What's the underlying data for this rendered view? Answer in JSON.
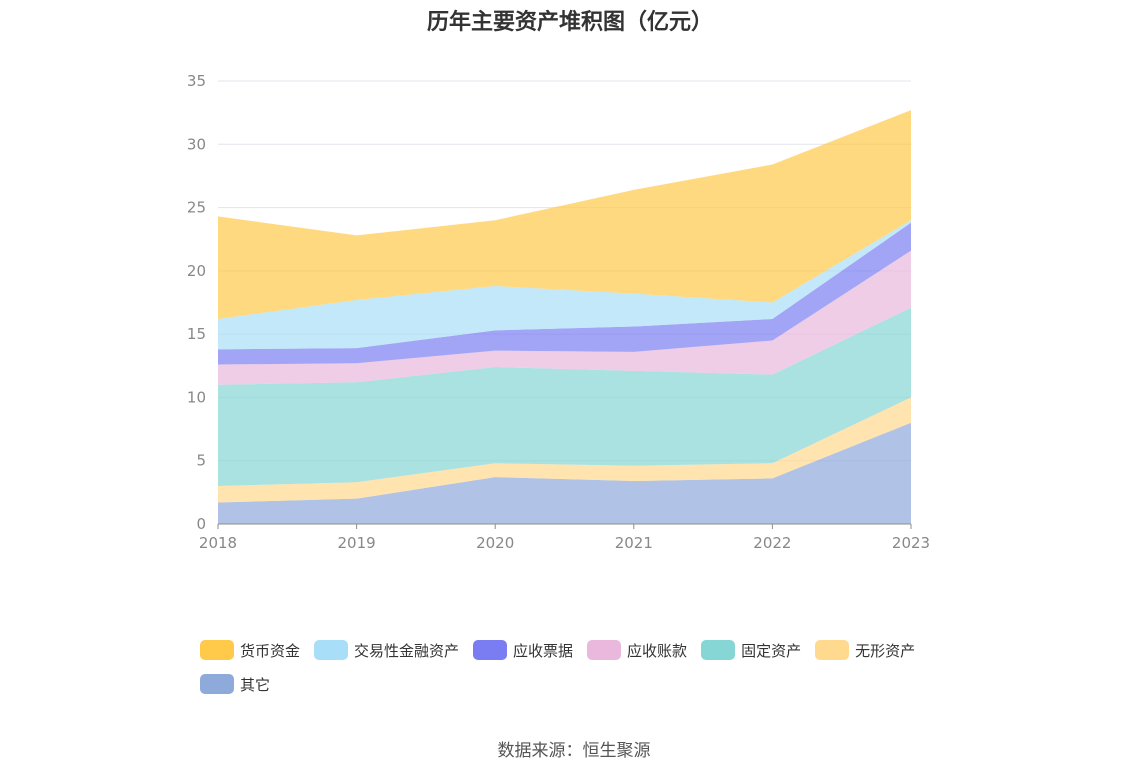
{
  "chart_data": {
    "type": "area",
    "stacked": true,
    "title": "历年主要资产堆积图（亿元）",
    "categories": [
      "2018",
      "2019",
      "2020",
      "2021",
      "2022",
      "2023"
    ],
    "ylim": [
      0,
      35
    ],
    "yticks": [
      0,
      5,
      10,
      15,
      20,
      25,
      30,
      35
    ],
    "grid": true,
    "legend_position": "bottom",
    "series": [
      {
        "name": "其它",
        "color": "#8eaadb",
        "values": [
          1.7,
          2.0,
          3.7,
          3.4,
          3.6,
          8.0
        ]
      },
      {
        "name": "无形资产",
        "color": "#ffd98e",
        "values": [
          1.3,
          1.3,
          1.1,
          1.2,
          1.2,
          2.0
        ]
      },
      {
        "name": "固定资产",
        "color": "#86d6d6",
        "values": [
          8.0,
          7.9,
          7.6,
          7.5,
          7.0,
          7.1
        ]
      },
      {
        "name": "应收账款",
        "color": "#e9b8dc",
        "values": [
          1.6,
          1.5,
          1.3,
          1.5,
          2.7,
          4.5
        ]
      },
      {
        "name": "应收票据",
        "color": "#7a7df2",
        "values": [
          1.2,
          1.2,
          1.6,
          2.0,
          1.7,
          2.2
        ]
      },
      {
        "name": "交易性金融资产",
        "color": "#a8def7",
        "values": [
          2.4,
          3.8,
          3.5,
          2.6,
          1.3,
          0.2
        ]
      },
      {
        "name": "货币资金",
        "color": "#ffc94a",
        "values": [
          8.1,
          5.1,
          5.2,
          8.2,
          10.9,
          8.7
        ]
      }
    ]
  },
  "legend": [
    {
      "label": "货币资金",
      "color": "#ffc94a"
    },
    {
      "label": "交易性金融资产",
      "color": "#a8def7"
    },
    {
      "label": "应收票据",
      "color": "#7a7df2"
    },
    {
      "label": "应收账款",
      "color": "#e9b8dc"
    },
    {
      "label": "固定资产",
      "color": "#86d6d6"
    },
    {
      "label": "无形资产",
      "color": "#ffd98e"
    },
    {
      "label": "其它",
      "color": "#8eaadb"
    }
  ],
  "source": "数据来源：恒生聚源"
}
